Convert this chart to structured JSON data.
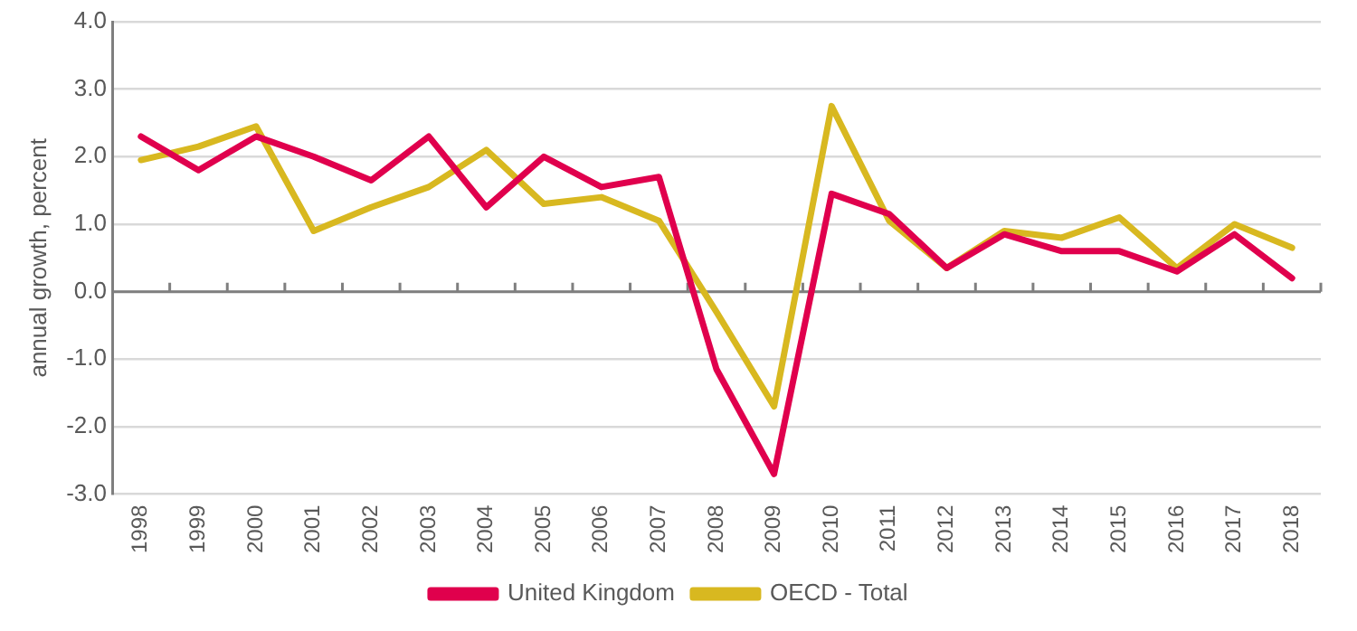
{
  "chart_data": {
    "type": "line",
    "ylabel": "annual growth, percent",
    "categories": [
      "1998",
      "1999",
      "2000",
      "2001",
      "2002",
      "2003",
      "2004",
      "2005",
      "2006",
      "2007",
      "2008",
      "2009",
      "2010",
      "2011",
      "2012",
      "2013",
      "2014",
      "2015",
      "2016",
      "2017",
      "2018"
    ],
    "series": [
      {
        "name": "United Kingdom",
        "color": "#e0004d",
        "values": [
          2.3,
          1.8,
          2.3,
          2.0,
          1.65,
          2.3,
          1.25,
          2.0,
          1.55,
          1.7,
          -1.15,
          -2.7,
          1.45,
          1.15,
          0.35,
          0.85,
          0.6,
          0.6,
          0.3,
          0.85,
          0.2
        ]
      },
      {
        "name": "OECD - Total",
        "color": "#d8b820",
        "values": [
          1.95,
          2.15,
          2.45,
          0.9,
          1.25,
          1.55,
          2.1,
          1.3,
          1.4,
          1.05,
          -0.3,
          -1.7,
          2.75,
          1.05,
          0.35,
          0.9,
          0.8,
          1.1,
          0.35,
          1.0,
          0.65
        ]
      }
    ],
    "ylim": [
      -3,
      4
    ],
    "yticks": [
      {
        "value": -3,
        "label": "-3.0"
      },
      {
        "value": -2,
        "label": "-2.0"
      },
      {
        "value": -1,
        "label": "-1.0"
      },
      {
        "value": 0,
        "label": "0.0"
      },
      {
        "value": 1,
        "label": "1.0"
      },
      {
        "value": 2,
        "label": "2.0"
      },
      {
        "value": 3,
        "label": "3.0"
      },
      {
        "value": 4,
        "label": "4.0"
      }
    ],
    "grid": "y",
    "legend": "bottom",
    "marker": "none",
    "line_style": "solid"
  }
}
